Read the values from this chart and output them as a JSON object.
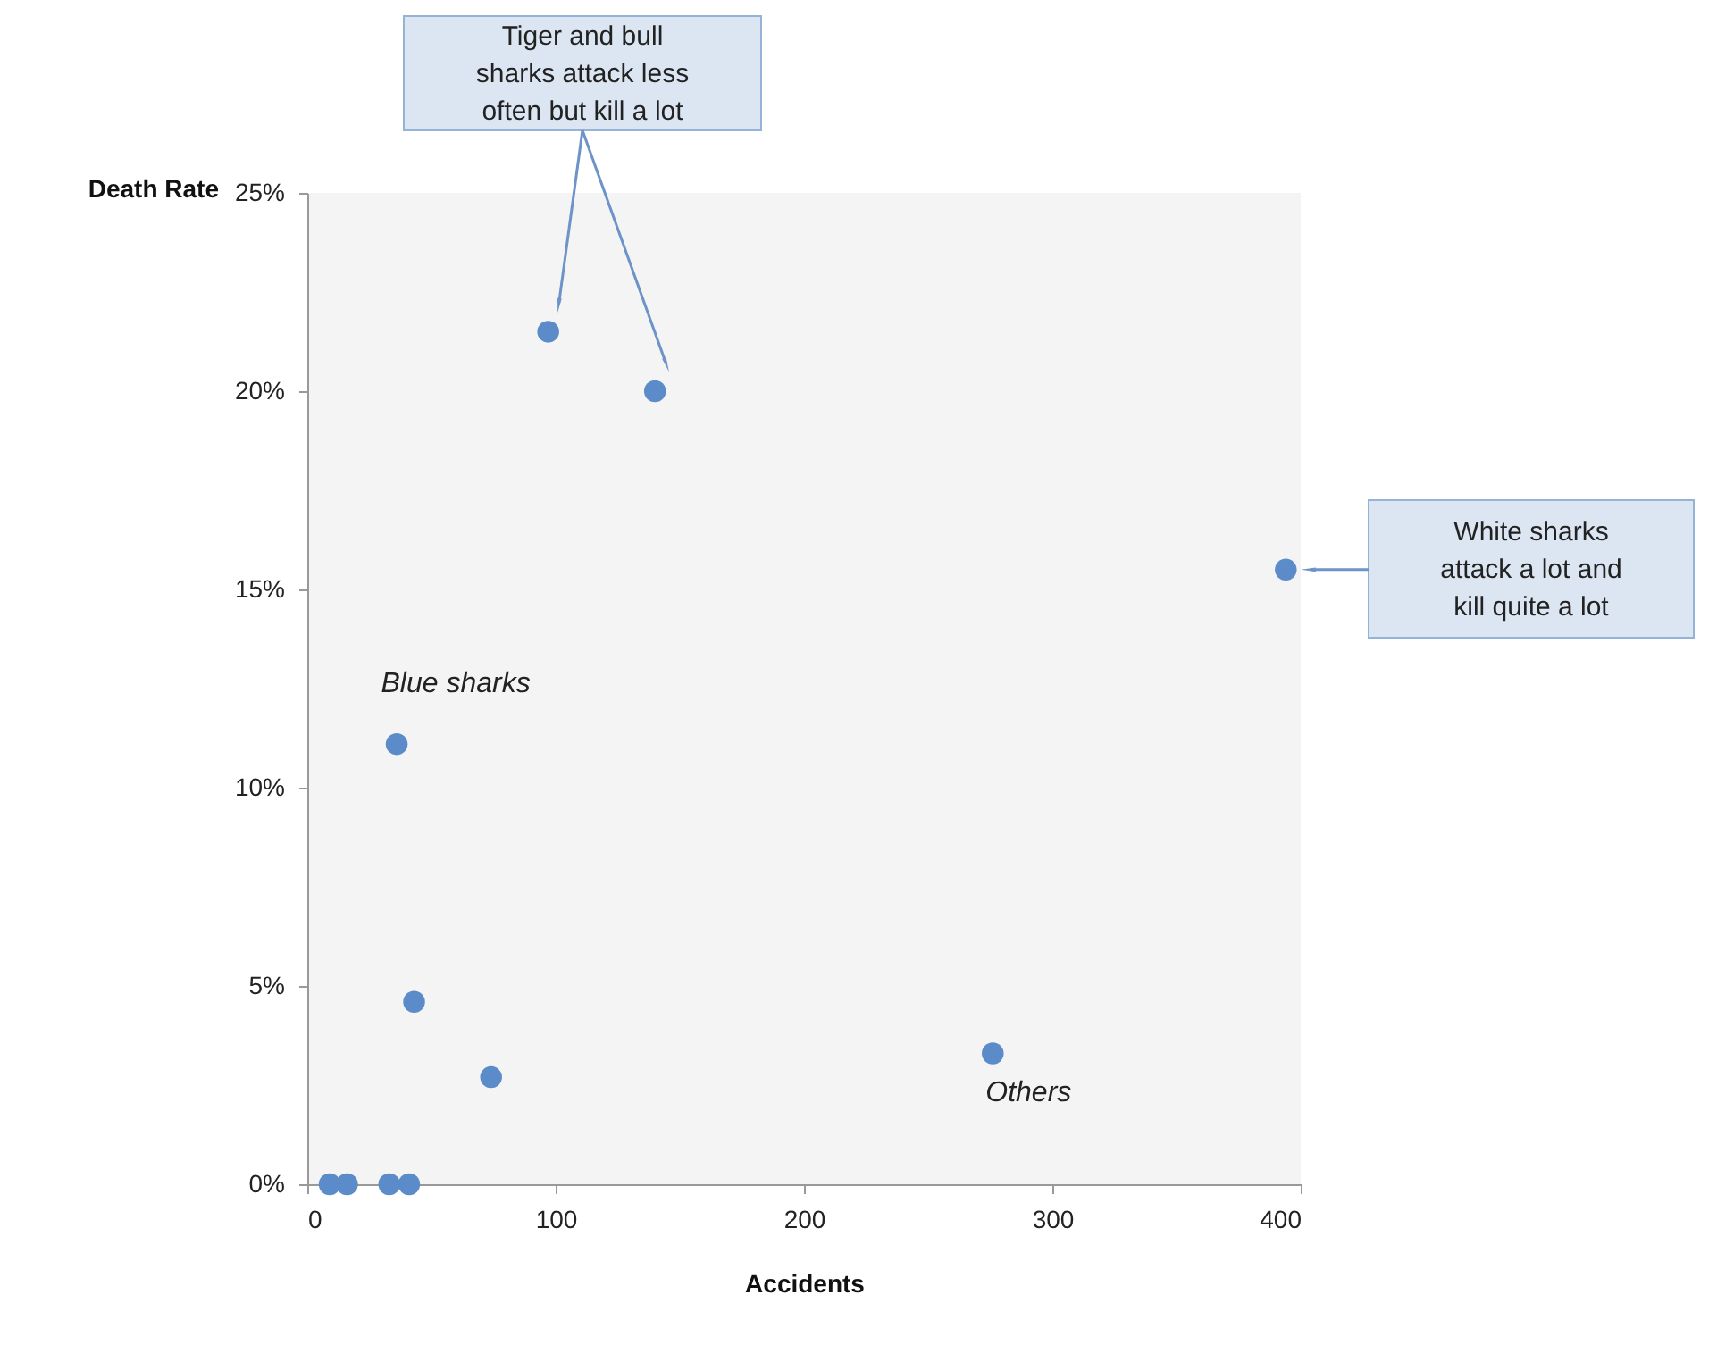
{
  "chart_data": {
    "type": "scatter",
    "xlabel": "Accidents",
    "ylabel": "Death Rate",
    "x": [
      97,
      140,
      394,
      36,
      43,
      74,
      276,
      9,
      16,
      33,
      41
    ],
    "series": [
      {
        "color": "#5b8bc9",
        "values": [
          21.5,
          20,
          15.5,
          11.1,
          4.6,
          2.7,
          3.3,
          0,
          0,
          0,
          0
        ]
      }
    ],
    "xlim": [
      0,
      400
    ],
    "xticks": [
      0,
      100,
      200,
      300,
      400
    ],
    "ylim": [
      0,
      25
    ],
    "yticks": [
      {
        "value": 0,
        "label": "0%"
      },
      {
        "value": 5,
        "label": "5%"
      },
      {
        "value": 10,
        "label": "10%"
      },
      {
        "value": 15,
        "label": "15%"
      },
      {
        "value": 20,
        "label": "20%"
      },
      {
        "value": 25,
        "label": "25%"
      }
    ],
    "marker": "circle",
    "grid": false,
    "annotations": [
      "Tiger and bull sharks attack less often but kill a lot",
      "White sharks attack a lot and kill quite a lot",
      {
        "text": "Blue sharks",
        "x": 36,
        "y": 11.1
      },
      {
        "text": "Others",
        "x": 276,
        "y": 3.3
      }
    ]
  }
}
